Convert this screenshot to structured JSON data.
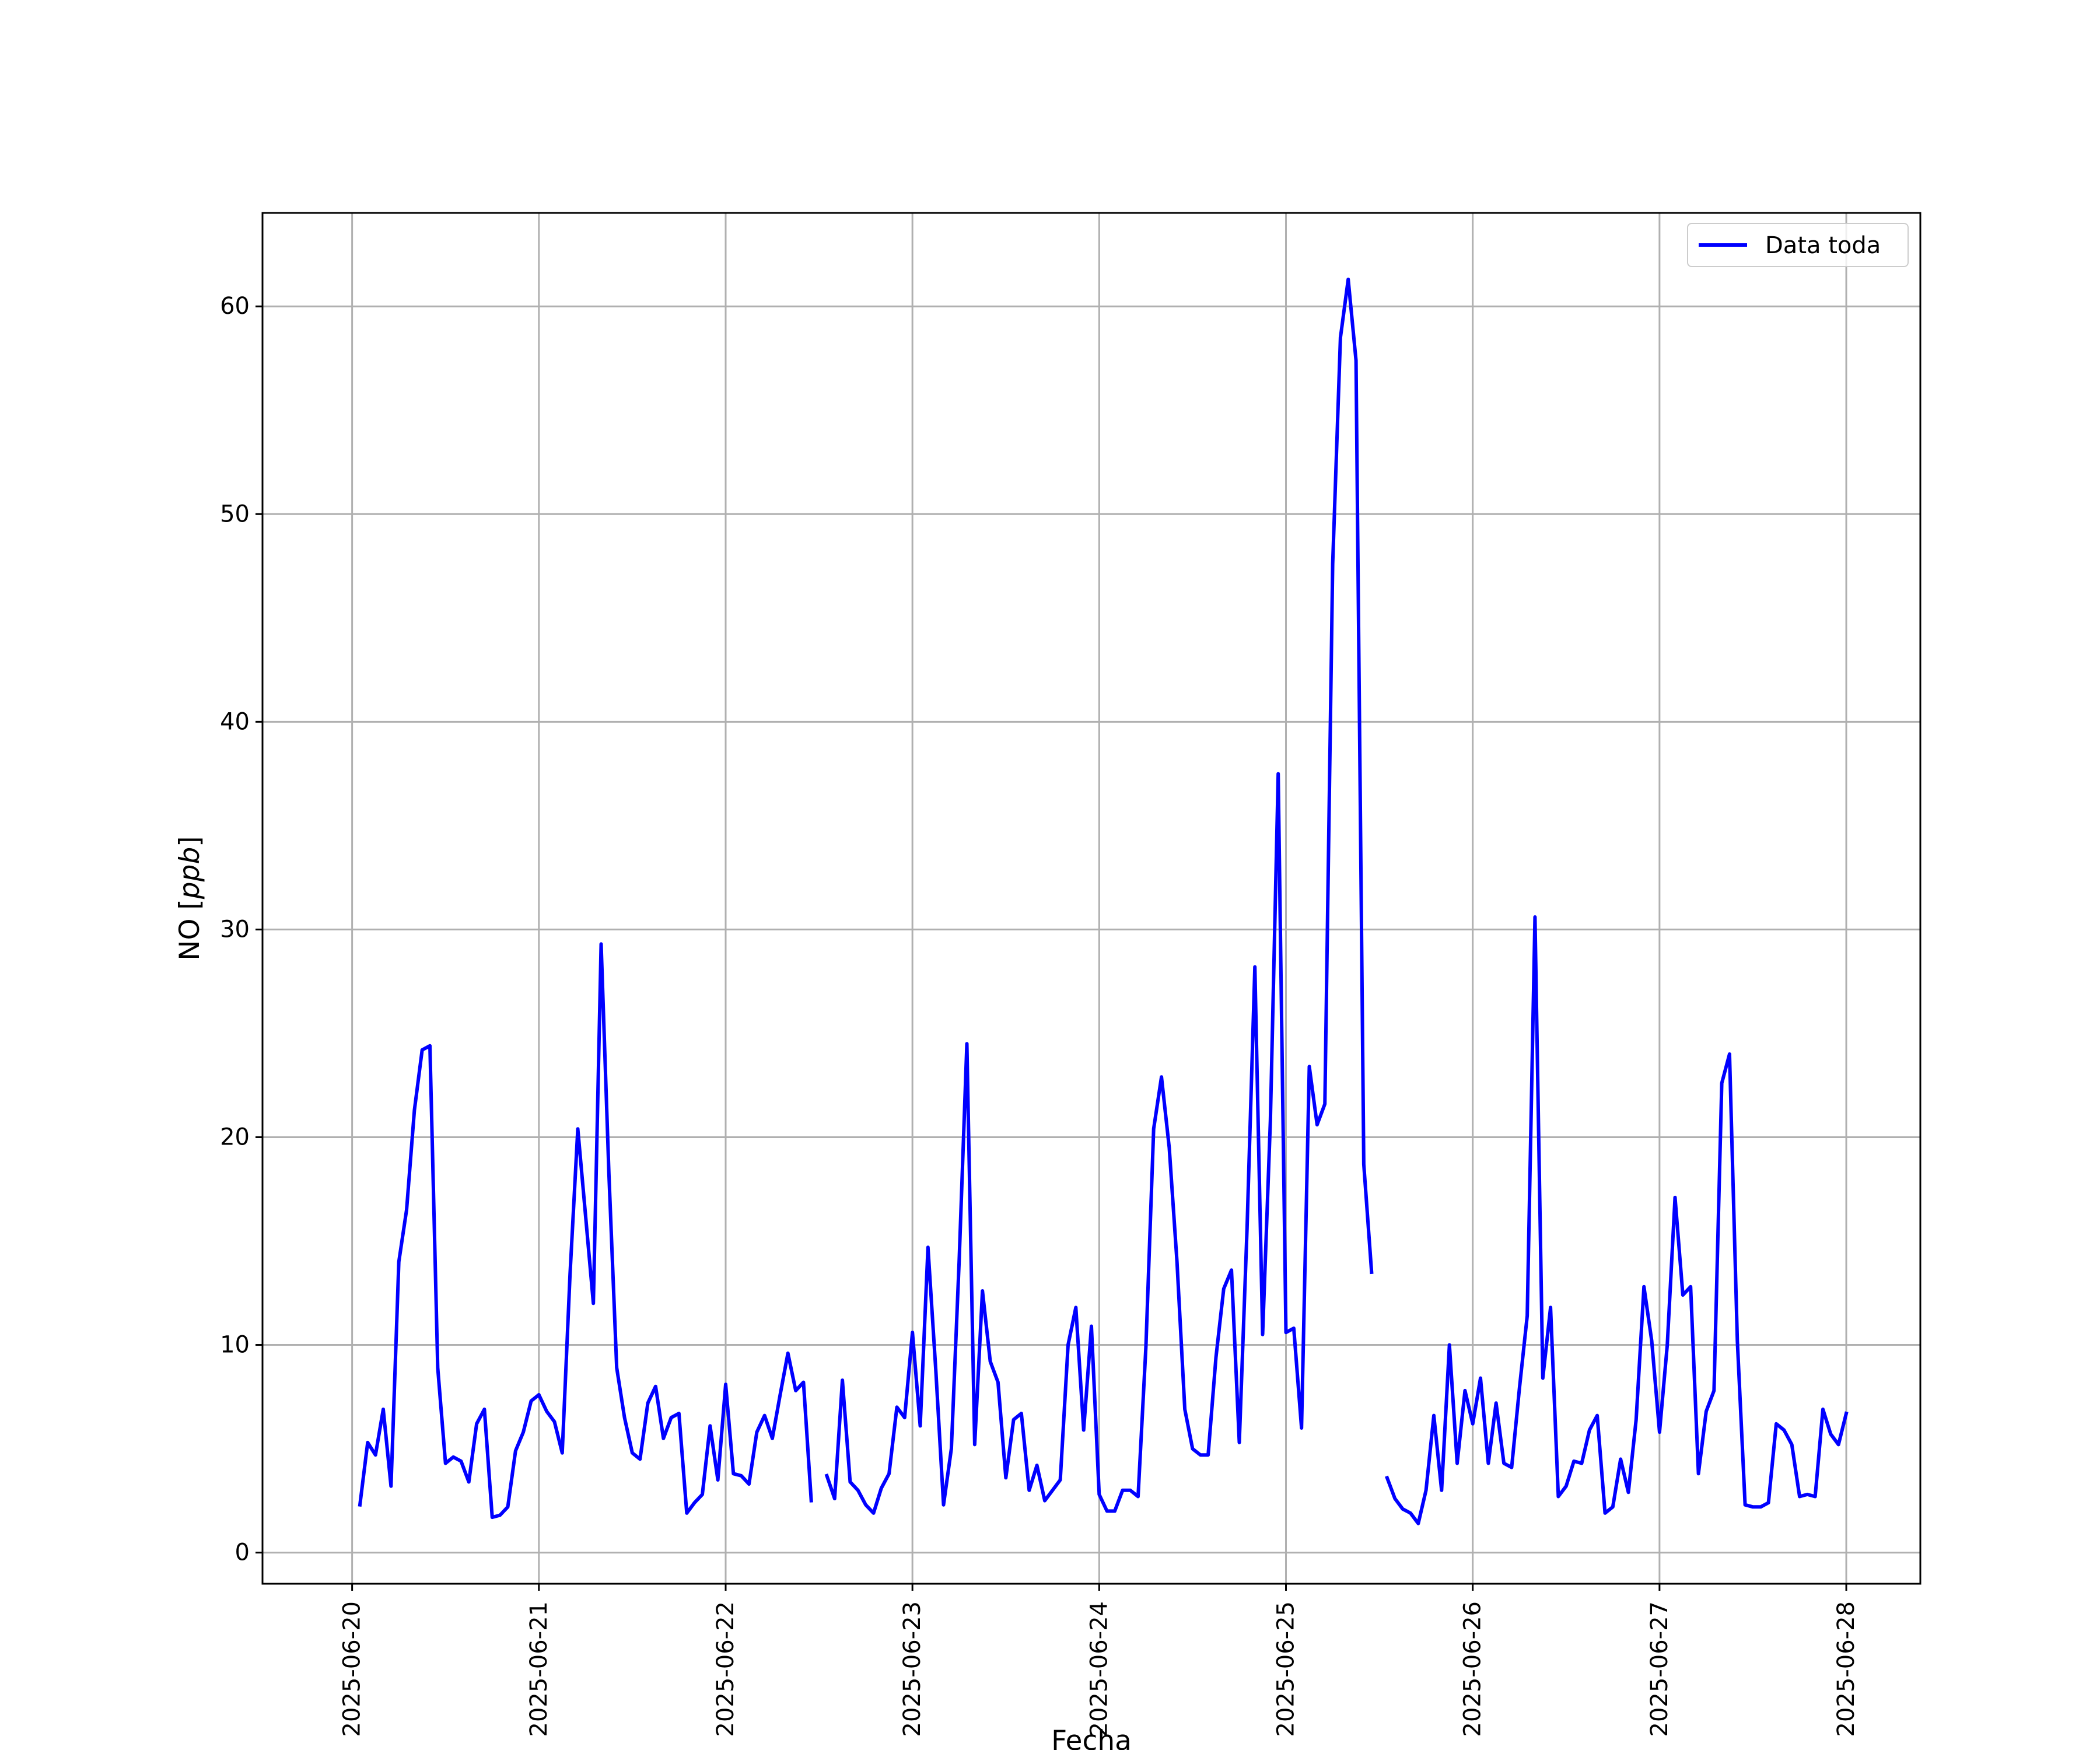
{
  "chart_data": {
    "type": "line",
    "title": "",
    "xlabel": "Fecha",
    "ylabel_main": "NO [",
    "ylabel_unit": "ppb",
    "ylabel_end": "]",
    "ylim": [
      -1.5,
      64.5
    ],
    "xlim": [
      "2025-06-19 12:29",
      "2025-06-28 09:31"
    ],
    "grid": true,
    "legend_position": "top-right",
    "x_ticks": [
      "2025-06-20",
      "2025-06-21",
      "2025-06-22",
      "2025-06-23",
      "2025-06-24",
      "2025-06-25",
      "2025-06-26",
      "2025-06-27",
      "2025-06-28"
    ],
    "y_ticks": [
      "0",
      "10",
      "20",
      "30",
      "40",
      "50",
      "60"
    ],
    "series": [
      {
        "name": "Data toda",
        "color": "#0000ff",
        "segments": [
          [
            [
              "2025-06-20 01:00",
              2.3
            ],
            [
              "2025-06-20 02:00",
              5.3
            ],
            [
              "2025-06-20 03:00",
              4.7
            ],
            [
              "2025-06-20 04:00",
              6.9
            ],
            [
              "2025-06-20 05:00",
              3.2
            ],
            [
              "2025-06-20 06:00",
              14.0
            ],
            [
              "2025-06-20 07:00",
              16.5
            ],
            [
              "2025-06-20 08:00",
              21.3
            ],
            [
              "2025-06-20 09:00",
              24.2
            ],
            [
              "2025-06-20 10:00",
              24.4
            ],
            [
              "2025-06-20 11:00",
              8.9
            ],
            [
              "2025-06-20 12:00",
              4.3
            ],
            [
              "2025-06-20 13:00",
              4.6
            ],
            [
              "2025-06-20 14:00",
              4.4
            ],
            [
              "2025-06-20 15:00",
              3.4
            ],
            [
              "2025-06-20 16:00",
              6.2
            ],
            [
              "2025-06-20 17:00",
              6.9
            ],
            [
              "2025-06-20 18:00",
              1.7
            ],
            [
              "2025-06-20 19:00",
              1.8
            ],
            [
              "2025-06-20 20:00",
              2.2
            ],
            [
              "2025-06-20 21:00",
              4.9
            ],
            [
              "2025-06-20 22:00",
              5.8
            ],
            [
              "2025-06-20 23:00",
              7.3
            ],
            [
              "2025-06-21 00:00",
              7.6
            ],
            [
              "2025-06-21 01:00",
              6.8
            ],
            [
              "2025-06-21 02:00",
              6.3
            ],
            [
              "2025-06-21 03:00",
              4.8
            ],
            [
              "2025-06-21 04:00",
              13.4
            ],
            [
              "2025-06-21 05:00",
              20.4
            ],
            [
              "2025-06-21 06:00",
              16.2
            ],
            [
              "2025-06-21 07:00",
              12.0
            ],
            [
              "2025-06-21 08:00",
              29.3
            ],
            [
              "2025-06-21 09:00",
              18.2
            ],
            [
              "2025-06-21 10:00",
              8.9
            ],
            [
              "2025-06-21 11:00",
              6.5
            ],
            [
              "2025-06-21 12:00",
              4.8
            ],
            [
              "2025-06-21 13:00",
              4.5
            ],
            [
              "2025-06-21 14:00",
              7.2
            ],
            [
              "2025-06-21 15:00",
              8.0
            ],
            [
              "2025-06-21 16:00",
              5.5
            ],
            [
              "2025-06-21 17:00",
              6.5
            ],
            [
              "2025-06-21 18:00",
              6.7
            ],
            [
              "2025-06-21 19:00",
              1.9
            ],
            [
              "2025-06-21 20:00",
              2.4
            ],
            [
              "2025-06-21 21:00",
              2.8
            ],
            [
              "2025-06-21 22:00",
              6.1
            ],
            [
              "2025-06-21 23:00",
              3.5
            ],
            [
              "2025-06-22 00:00",
              8.1
            ],
            [
              "2025-06-22 01:00",
              3.8
            ],
            [
              "2025-06-22 02:00",
              3.7
            ],
            [
              "2025-06-22 03:00",
              3.3
            ],
            [
              "2025-06-22 04:00",
              5.8
            ],
            [
              "2025-06-22 05:00",
              6.6
            ],
            [
              "2025-06-22 06:00",
              5.5
            ],
            [
              "2025-06-22 07:00",
              7.6
            ],
            [
              "2025-06-22 08:00",
              9.6
            ],
            [
              "2025-06-22 09:00",
              7.8
            ],
            [
              "2025-06-22 10:00",
              8.2
            ],
            [
              "2025-06-22 11:00",
              2.5
            ]
          ],
          [
            [
              "2025-06-22 13:00",
              3.7
            ],
            [
              "2025-06-22 14:00",
              2.6
            ],
            [
              "2025-06-22 15:00",
              8.3
            ],
            [
              "2025-06-22 16:00",
              3.4
            ],
            [
              "2025-06-22 17:00",
              3.0
            ],
            [
              "2025-06-22 18:00",
              2.3
            ],
            [
              "2025-06-22 19:00",
              1.9
            ],
            [
              "2025-06-22 20:00",
              3.1
            ],
            [
              "2025-06-22 21:00",
              3.8
            ],
            [
              "2025-06-22 22:00",
              7.0
            ],
            [
              "2025-06-22 23:00",
              6.5
            ],
            [
              "2025-06-23 00:00",
              10.6
            ],
            [
              "2025-06-23 01:00",
              6.1
            ],
            [
              "2025-06-23 02:00",
              14.7
            ],
            [
              "2025-06-23 03:00",
              8.8
            ],
            [
              "2025-06-23 04:00",
              2.3
            ],
            [
              "2025-06-23 05:00",
              5.0
            ],
            [
              "2025-06-23 06:00",
              14.0
            ],
            [
              "2025-06-23 07:00",
              24.5
            ],
            [
              "2025-06-23 08:00",
              5.2
            ],
            [
              "2025-06-23 09:00",
              12.6
            ],
            [
              "2025-06-23 10:00",
              9.2
            ],
            [
              "2025-06-23 11:00",
              8.2
            ],
            [
              "2025-06-23 12:00",
              3.6
            ],
            [
              "2025-06-23 13:00",
              6.4
            ],
            [
              "2025-06-23 14:00",
              6.7
            ],
            [
              "2025-06-23 15:00",
              3.0
            ],
            [
              "2025-06-23 16:00",
              4.2
            ],
            [
              "2025-06-23 17:00",
              2.5
            ],
            [
              "2025-06-23 18:00",
              3.0
            ],
            [
              "2025-06-23 19:00",
              3.5
            ],
            [
              "2025-06-23 20:00",
              10.0
            ],
            [
              "2025-06-23 21:00",
              11.8
            ],
            [
              "2025-06-23 22:00",
              5.9
            ],
            [
              "2025-06-23 23:00",
              10.9
            ],
            [
              "2025-06-24 00:00",
              2.8
            ],
            [
              "2025-06-24 01:00",
              2.0
            ],
            [
              "2025-06-24 02:00",
              2.0
            ],
            [
              "2025-06-24 03:00",
              3.0
            ],
            [
              "2025-06-24 04:00",
              3.0
            ],
            [
              "2025-06-24 05:00",
              2.7
            ],
            [
              "2025-06-24 06:00",
              9.9
            ],
            [
              "2025-06-24 07:00",
              20.4
            ],
            [
              "2025-06-24 08:00",
              22.9
            ],
            [
              "2025-06-24 09:00",
              19.5
            ],
            [
              "2025-06-24 10:00",
              14.0
            ],
            [
              "2025-06-24 11:00",
              6.9
            ],
            [
              "2025-06-24 12:00",
              5.0
            ],
            [
              "2025-06-24 13:00",
              4.7
            ],
            [
              "2025-06-24 14:00",
              4.7
            ],
            [
              "2025-06-24 15:00",
              9.4
            ],
            [
              "2025-06-24 16:00",
              12.7
            ],
            [
              "2025-06-24 17:00",
              13.6
            ],
            [
              "2025-06-24 18:00",
              5.3
            ],
            [
              "2025-06-24 19:00",
              15.6
            ],
            [
              "2025-06-24 20:00",
              28.2
            ],
            [
              "2025-06-24 21:00",
              10.5
            ],
            [
              "2025-06-24 22:00",
              20.8
            ],
            [
              "2025-06-24 23:00",
              37.5
            ],
            [
              "2025-06-25 00:00",
              10.6
            ],
            [
              "2025-06-25 01:00",
              10.8
            ],
            [
              "2025-06-25 02:00",
              6.0
            ],
            [
              "2025-06-25 03:00",
              23.4
            ],
            [
              "2025-06-25 04:00",
              20.6
            ],
            [
              "2025-06-25 05:00",
              21.6
            ],
            [
              "2025-06-25 06:00",
              47.6
            ],
            [
              "2025-06-25 07:00",
              58.5
            ],
            [
              "2025-06-25 08:00",
              61.3
            ],
            [
              "2025-06-25 09:00",
              57.4
            ],
            [
              "2025-06-25 10:00",
              18.7
            ],
            [
              "2025-06-25 11:00",
              13.5
            ]
          ],
          [
            [
              "2025-06-25 13:00",
              3.6
            ],
            [
              "2025-06-25 14:00",
              2.6
            ],
            [
              "2025-06-25 15:00",
              2.1
            ],
            [
              "2025-06-25 16:00",
              1.9
            ],
            [
              "2025-06-25 17:00",
              1.4
            ],
            [
              "2025-06-25 18:00",
              3.0
            ],
            [
              "2025-06-25 19:00",
              6.6
            ],
            [
              "2025-06-25 20:00",
              3.0
            ],
            [
              "2025-06-25 21:00",
              10.0
            ],
            [
              "2025-06-25 22:00",
              4.3
            ],
            [
              "2025-06-25 23:00",
              7.8
            ],
            [
              "2025-06-26 00:00",
              6.2
            ],
            [
              "2025-06-26 01:00",
              8.4
            ],
            [
              "2025-06-26 02:00",
              4.3
            ],
            [
              "2025-06-26 03:00",
              7.2
            ],
            [
              "2025-06-26 04:00",
              4.3
            ],
            [
              "2025-06-26 05:00",
              4.1
            ],
            [
              "2025-06-26 06:00",
              7.9
            ],
            [
              "2025-06-26 07:00",
              11.4
            ],
            [
              "2025-06-26 08:00",
              30.6
            ],
            [
              "2025-06-26 09:00",
              8.4
            ],
            [
              "2025-06-26 10:00",
              11.8
            ],
            [
              "2025-06-26 11:00",
              2.7
            ],
            [
              "2025-06-26 12:00",
              3.2
            ],
            [
              "2025-06-26 13:00",
              4.4
            ],
            [
              "2025-06-26 14:00",
              4.3
            ],
            [
              "2025-06-26 15:00",
              5.9
            ],
            [
              "2025-06-26 16:00",
              6.6
            ],
            [
              "2025-06-26 17:00",
              1.9
            ],
            [
              "2025-06-26 18:00",
              2.2
            ],
            [
              "2025-06-26 19:00",
              4.5
            ],
            [
              "2025-06-26 20:00",
              2.9
            ],
            [
              "2025-06-26 21:00",
              6.4
            ],
            [
              "2025-06-26 22:00",
              12.8
            ],
            [
              "2025-06-26 23:00",
              10.2
            ],
            [
              "2025-06-27 00:00",
              5.8
            ],
            [
              "2025-06-27 01:00",
              10.0
            ],
            [
              "2025-06-27 02:00",
              17.1
            ],
            [
              "2025-06-27 03:00",
              12.4
            ],
            [
              "2025-06-27 04:00",
              12.8
            ],
            [
              "2025-06-27 05:00",
              3.8
            ],
            [
              "2025-06-27 06:00",
              6.8
            ],
            [
              "2025-06-27 07:00",
              7.8
            ],
            [
              "2025-06-27 08:00",
              22.6
            ],
            [
              "2025-06-27 09:00",
              24.0
            ],
            [
              "2025-06-27 10:00",
              10.2
            ],
            [
              "2025-06-27 11:00",
              2.3
            ],
            [
              "2025-06-27 12:00",
              2.2
            ],
            [
              "2025-06-27 13:00",
              2.2
            ],
            [
              "2025-06-27 14:00",
              2.4
            ],
            [
              "2025-06-27 15:00",
              6.2
            ],
            [
              "2025-06-27 16:00",
              5.9
            ],
            [
              "2025-06-27 17:00",
              5.2
            ],
            [
              "2025-06-27 18:00",
              2.7
            ],
            [
              "2025-06-27 19:00",
              2.8
            ],
            [
              "2025-06-27 20:00",
              2.7
            ],
            [
              "2025-06-27 21:00",
              6.9
            ],
            [
              "2025-06-27 22:00",
              5.7
            ],
            [
              "2025-06-27 23:00",
              5.2
            ],
            [
              "2025-06-28 00:00",
              6.7
            ]
          ]
        ]
      }
    ]
  }
}
